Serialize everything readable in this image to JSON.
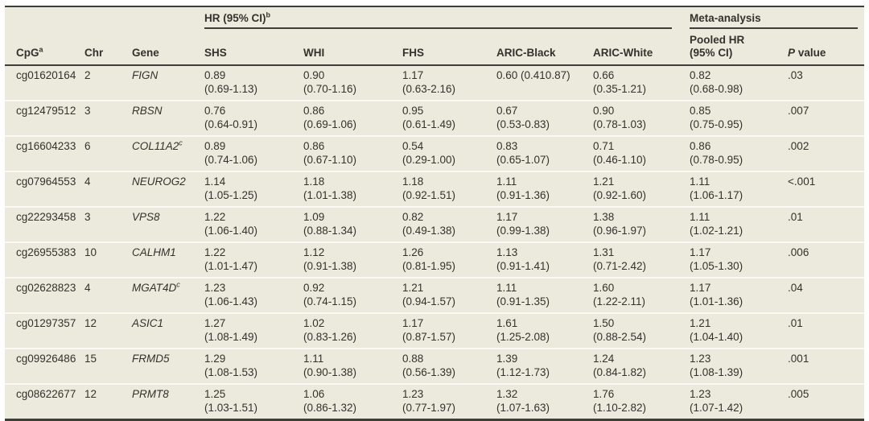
{
  "colors": {
    "table_background": "#ece9dd",
    "border_dark": "#3e3d37",
    "row_separator": "#faf9f3",
    "text": "#33322c"
  },
  "table": {
    "spanners": {
      "hr": "HR (95% CI)",
      "hr_sup": "b",
      "meta": "Meta-analysis"
    },
    "columns": {
      "cpg": "CpG",
      "cpg_sup": "a",
      "chr": "Chr",
      "gene": "Gene",
      "shs": "SHS",
      "whi": "WHI",
      "fhs": "FHS",
      "aric_black": "ARIC-Black",
      "aric_white": "ARIC-White",
      "pooled_line1": "Pooled HR",
      "pooled_line2": "(95% CI)",
      "p_italic": "P",
      "p_rest": " value"
    },
    "rows": [
      {
        "cpg": "cg01620164",
        "chr": "2",
        "gene": "FIGN",
        "gene_sup": "",
        "shs": [
          "0.89",
          "(0.69-1.13)"
        ],
        "whi": [
          "0.90",
          "(0.70-1.16)"
        ],
        "fhs": [
          "1.17",
          "(0.63-2.16)"
        ],
        "aric_black": [
          "0.60 (0.410.87)",
          ""
        ],
        "aric_white": [
          "0.66",
          "(0.35-1.21)"
        ],
        "pooled": [
          "0.82",
          "(0.68-0.98)"
        ],
        "p": ".03"
      },
      {
        "cpg": "cg12479512",
        "chr": "3",
        "gene": "RBSN",
        "gene_sup": "",
        "shs": [
          "0.76",
          "(0.64-0.91)"
        ],
        "whi": [
          "0.86",
          "(0.69-1.06)"
        ],
        "fhs": [
          "0.95",
          "(0.61-1.49)"
        ],
        "aric_black": [
          "0.67",
          "(0.53-0.83)"
        ],
        "aric_white": [
          "0.90",
          "(0.78-1.03)"
        ],
        "pooled": [
          "0.85",
          "(0.75-0.95)"
        ],
        "p": ".007"
      },
      {
        "cpg": "cg16604233",
        "chr": "6",
        "gene": "COL11A2",
        "gene_sup": "c",
        "shs": [
          "0.89",
          "(0.74-1.06)"
        ],
        "whi": [
          "0.86",
          "(0.67-1.10)"
        ],
        "fhs": [
          "0.54",
          "(0.29-1.00)"
        ],
        "aric_black": [
          "0.83",
          "(0.65-1.07)"
        ],
        "aric_white": [
          "0.71",
          "(0.46-1.10)"
        ],
        "pooled": [
          "0.86",
          "(0.78-0.95)"
        ],
        "p": ".002"
      },
      {
        "cpg": "cg07964553",
        "chr": "4",
        "gene": "NEUROG2",
        "gene_sup": "",
        "shs": [
          "1.14",
          "(1.05-1.25)"
        ],
        "whi": [
          "1.18",
          "(1.01-1.38)"
        ],
        "fhs": [
          "1.18",
          "(0.92-1.51)"
        ],
        "aric_black": [
          "1.11",
          "(0.91-1.36)"
        ],
        "aric_white": [
          "1.21",
          "(0.92-1.60)"
        ],
        "pooled": [
          "1.11",
          "(1.06-1.17)"
        ],
        "p": "<.001"
      },
      {
        "cpg": "cg22293458",
        "chr": "3",
        "gene": "VPS8",
        "gene_sup": "",
        "shs": [
          "1.22",
          "(1.06-1.40)"
        ],
        "whi": [
          "1.09",
          "(0.88-1.34)"
        ],
        "fhs": [
          "0.82",
          "(0.49-1.38)"
        ],
        "aric_black": [
          "1.17",
          "(0.99-1.38)"
        ],
        "aric_white": [
          "1.38",
          "(0.96-1.97)"
        ],
        "pooled": [
          "1.11",
          "(1.02-1.21)"
        ],
        "p": ".01"
      },
      {
        "cpg": "cg26955383",
        "chr": "10",
        "gene": "CALHM1",
        "gene_sup": "",
        "shs": [
          "1.22",
          "(1.01-1.47)"
        ],
        "whi": [
          "1.12",
          "(0.91-1.38)"
        ],
        "fhs": [
          "1.26",
          "(0.81-1.95)"
        ],
        "aric_black": [
          "1.13",
          "(0.91-1.41)"
        ],
        "aric_white": [
          "1.31",
          "(0.71-2.42)"
        ],
        "pooled": [
          "1.17",
          "(1.05-1.30)"
        ],
        "p": ".006"
      },
      {
        "cpg": "cg02628823",
        "chr": "4",
        "gene": "MGAT4D",
        "gene_sup": "c",
        "shs": [
          "1.23",
          "(1.06-1.43)"
        ],
        "whi": [
          "0.92",
          "(0.74-1.15)"
        ],
        "fhs": [
          "1.21",
          "(0.94-1.57)"
        ],
        "aric_black": [
          "1.11",
          "(0.91-1.35)"
        ],
        "aric_white": [
          "1.60",
          "(1.22-2.11)"
        ],
        "pooled": [
          "1.17",
          "(1.01-1.36)"
        ],
        "p": ".04"
      },
      {
        "cpg": "cg01297357",
        "chr": "12",
        "gene": "ASIC1",
        "gene_sup": "",
        "shs": [
          "1.27",
          "(1.08-1.49)"
        ],
        "whi": [
          "1.02",
          "(0.83-1.26)"
        ],
        "fhs": [
          "1.17",
          "(0.87-1.57)"
        ],
        "aric_black": [
          "1.61",
          "(1.25-2.08)"
        ],
        "aric_white": [
          "1.50",
          "(0.88-2.54)"
        ],
        "pooled": [
          "1.21",
          "(1.04-1.40)"
        ],
        "p": ".01"
      },
      {
        "cpg": "cg09926486",
        "chr": "15",
        "gene": "FRMD5",
        "gene_sup": "",
        "shs": [
          "1.29",
          "(1.08-1.53)"
        ],
        "whi": [
          "1.11",
          "(0.90-1.38)"
        ],
        "fhs": [
          "0.88",
          "(0.56-1.39)"
        ],
        "aric_black": [
          "1.39",
          "(1.12-1.73)"
        ],
        "aric_white": [
          "1.24",
          "(0.84-1.82)"
        ],
        "pooled": [
          "1.23",
          "(1.08-1.39)"
        ],
        "p": ".001"
      },
      {
        "cpg": "cg08622677",
        "chr": "12",
        "gene": "PRMT8",
        "gene_sup": "",
        "shs": [
          "1.25",
          "(1.03-1.51)"
        ],
        "whi": [
          "1.06",
          "(0.86-1.32)"
        ],
        "fhs": [
          "1.23",
          "(0.77-1.97)"
        ],
        "aric_black": [
          "1.32",
          "(1.07-1.63)"
        ],
        "aric_white": [
          "1.76",
          "(1.10-2.82)"
        ],
        "pooled": [
          "1.23",
          "(1.07-1.42)"
        ],
        "p": ".005"
      }
    ]
  }
}
